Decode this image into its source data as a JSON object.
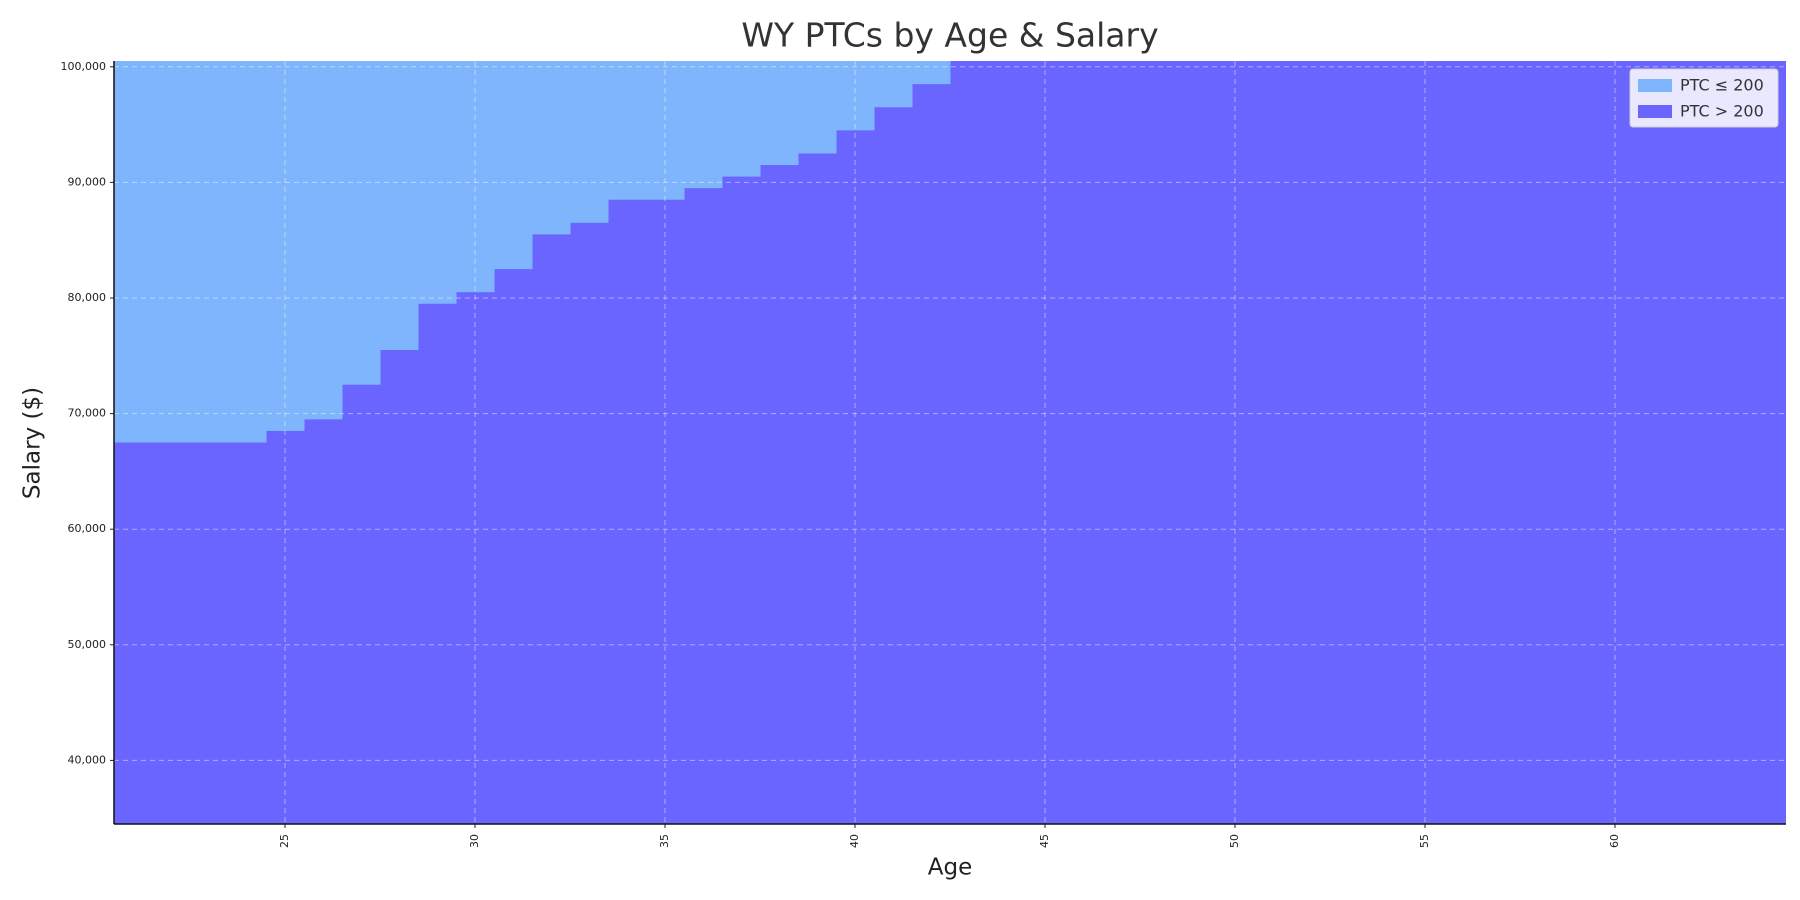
{
  "chart_data": {
    "type": "step",
    "title": "WY PTCs by Age & Salary",
    "xlabel": "Age",
    "ylabel": "Salary ($)",
    "x": [
      21,
      22,
      23,
      24,
      25,
      26,
      27,
      28,
      29,
      30,
      31,
      32,
      33,
      34,
      35,
      36,
      37,
      38,
      39,
      40,
      41,
      42,
      43,
      44,
      45,
      46,
      47,
      48,
      49,
      50,
      51,
      52,
      53,
      54,
      55,
      56,
      57,
      58,
      59,
      60,
      61,
      62,
      63,
      64
    ],
    "values": [
      67500,
      67500,
      67500,
      67500,
      68500,
      69500,
      72500,
      75500,
      79500,
      80500,
      82500,
      85500,
      86500,
      88500,
      88500,
      89500,
      90500,
      91500,
      92500,
      94500,
      96500,
      98500,
      null,
      null,
      null,
      null,
      null,
      null,
      null,
      null,
      null,
      null,
      null,
      null,
      null,
      null,
      null,
      null,
      null,
      null,
      null,
      null,
      null,
      null
    ],
    "series": [
      {
        "name": "PTC ≤ 200",
        "color": "#7fb5fc"
      },
      {
        "name": "PTC > 200",
        "color": "#6b65ff"
      }
    ],
    "xlim": [
      20.5,
      64.5
    ],
    "ylim": [
      34500,
      100500
    ],
    "xticks": [
      25,
      30,
      35,
      40,
      45,
      50,
      55,
      60
    ],
    "yticks": [
      {
        "value": 40000,
        "label": "40,000"
      },
      {
        "value": 50000,
        "label": "50,000"
      },
      {
        "value": 60000,
        "label": "60,000"
      },
      {
        "value": 70000,
        "label": "70,000"
      },
      {
        "value": 80000,
        "label": "80,000"
      },
      {
        "value": 90000,
        "label": "90,000"
      },
      {
        "value": 100000,
        "label": "100,000"
      }
    ],
    "grid": true,
    "legend": "upper right"
  }
}
